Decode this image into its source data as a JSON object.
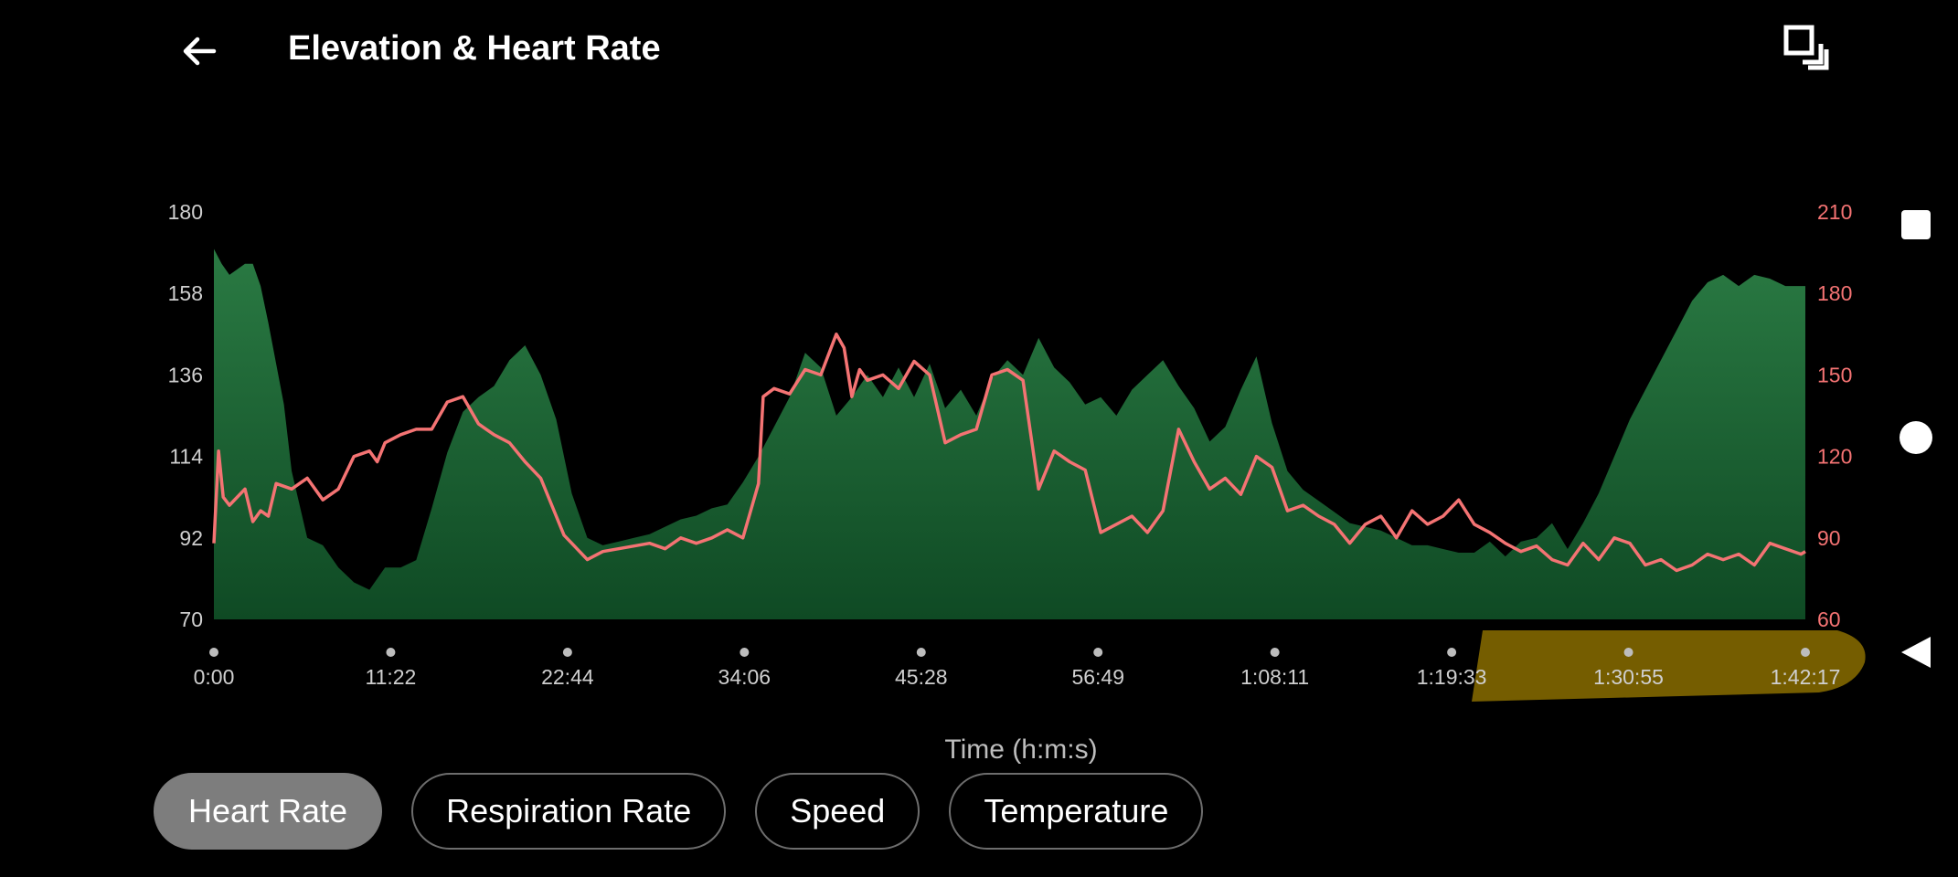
{
  "header": {
    "title": "Elevation & Heart Rate",
    "back_icon": "arrow-left-icon",
    "expand_icon": "fullscreen-icon"
  },
  "tabs": [
    {
      "label": "Heart Rate",
      "active": true
    },
    {
      "label": "Respiration Rate",
      "active": false
    },
    {
      "label": "Speed",
      "active": false
    },
    {
      "label": "Temperature",
      "active": false
    }
  ],
  "navbar": {
    "icons": [
      "recents-square-icon",
      "home-circle-icon",
      "back-triangle-icon"
    ]
  },
  "colors": {
    "background": "#000000",
    "elevation_fill_top": "#2a7a43",
    "elevation_fill_bottom": "#0f4a24",
    "heart_rate_line": "#f47373",
    "left_axis_text": "#cfcfcf",
    "right_axis_text": "#f47373",
    "highlight": "#8a6d00"
  },
  "chart_data": {
    "type": "area",
    "xlabel": "Time (h:m:s)",
    "x_ticks": [
      "0:00",
      "11:22",
      "22:44",
      "34:06",
      "45:28",
      "56:49",
      "1:08:11",
      "1:19:33",
      "1:30:55",
      "1:42:17"
    ],
    "x_range_minutes": [
      0,
      102.28
    ],
    "left_axis": {
      "ticks": [
        "180",
        "158",
        "136",
        "114",
        "92",
        "70"
      ],
      "ylim": [
        70,
        180
      ]
    },
    "right_axis": {
      "ticks": [
        "210",
        "180",
        "150",
        "120",
        "90",
        "60"
      ],
      "ylim": [
        60,
        210
      ]
    },
    "grid": false,
    "series": [
      {
        "type": "area",
        "axis": "left",
        "x_minutes": [
          0,
          0.5,
          1,
          2,
          2.5,
          3,
          3.5,
          4.5,
          5,
          6,
          7,
          8,
          9,
          10,
          11,
          12,
          13,
          14,
          15,
          16,
          17,
          18,
          19,
          20,
          21,
          22,
          23,
          24,
          25,
          26,
          27,
          28,
          29,
          30,
          31,
          32,
          33,
          34,
          35,
          36,
          37,
          38,
          39,
          40,
          41,
          42,
          43,
          44,
          45,
          46,
          47,
          48,
          49,
          50,
          51,
          52,
          53,
          54,
          55,
          56,
          57,
          58,
          59,
          60,
          61,
          62,
          63,
          64,
          65,
          66,
          67,
          68,
          69,
          70,
          71,
          72,
          73,
          74,
          75,
          76,
          77,
          78,
          79,
          80,
          81,
          82,
          83,
          84,
          85,
          86,
          87,
          88,
          89,
          90,
          91,
          92,
          93,
          94,
          95,
          96,
          97,
          98,
          99,
          100,
          101,
          102.28
        ],
        "values": [
          170,
          166,
          163,
          166,
          166,
          160,
          150,
          128,
          110,
          92,
          90,
          84,
          80,
          78,
          84,
          84,
          86,
          100,
          115,
          126,
          130,
          133,
          140,
          144,
          136,
          124,
          104,
          92,
          90,
          91,
          92,
          93,
          95,
          97,
          98,
          100,
          101,
          107,
          114,
          122,
          130,
          142,
          138,
          125,
          130,
          136,
          130,
          138,
          130,
          139,
          127,
          132,
          125,
          135,
          140,
          136,
          146,
          138,
          134,
          128,
          130,
          125,
          132,
          136,
          140,
          133,
          127,
          118,
          122,
          132,
          141,
          123,
          110,
          105,
          102,
          99,
          96,
          95,
          94,
          92,
          90,
          90,
          89,
          88,
          88,
          91,
          87,
          91,
          92,
          96,
          89,
          96,
          104,
          114,
          124,
          132,
          140,
          148,
          156,
          161,
          163,
          160,
          163,
          162,
          160,
          160
        ],
        "unit": "elevation"
      },
      {
        "type": "line",
        "axis": "right",
        "x_minutes": [
          0,
          0.3,
          0.6,
          1,
          2,
          2.5,
          3,
          3.5,
          4,
          5,
          5.5,
          6,
          7,
          8,
          9,
          10,
          10.5,
          11,
          12,
          13,
          14,
          15,
          16,
          17,
          17.5,
          18,
          19,
          20,
          21,
          22,
          22.5,
          23,
          24,
          25,
          26,
          27,
          28,
          29,
          30,
          31,
          32,
          33,
          34,
          35,
          35.3,
          36,
          37,
          38,
          39,
          40,
          40.5,
          41,
          41.5,
          42,
          43,
          44,
          45,
          46,
          47,
          48,
          49,
          50,
          51,
          52,
          53,
          54,
          54.5,
          55,
          56,
          57,
          58,
          59,
          60,
          61,
          62,
          63,
          64,
          65,
          66,
          67,
          68,
          69,
          70,
          71,
          72,
          73,
          74,
          75,
          76,
          77,
          78,
          79,
          80,
          81,
          82,
          83,
          84,
          85,
          86,
          87,
          88,
          89,
          90,
          91,
          92,
          93,
          94,
          95,
          96,
          97,
          98,
          99,
          100,
          101,
          102,
          102.28
        ],
        "values": [
          88,
          122,
          105,
          102,
          108,
          96,
          100,
          98,
          110,
          108,
          110,
          112,
          104,
          108,
          120,
          122,
          118,
          125,
          128,
          130,
          130,
          140,
          142,
          132,
          130,
          128,
          125,
          118,
          112,
          98,
          91,
          88,
          82,
          85,
          86,
          87,
          88,
          86,
          90,
          88,
          90,
          93,
          90,
          110,
          142,
          145,
          143,
          152,
          150,
          165,
          160,
          142,
          152,
          148,
          150,
          145,
          155,
          150,
          125,
          128,
          130,
          150,
          152,
          148,
          108,
          122,
          120,
          118,
          115,
          92,
          95,
          98,
          92,
          100,
          130,
          118,
          108,
          112,
          106,
          120,
          116,
          100,
          102,
          98,
          95,
          88,
          95,
          98,
          90,
          100,
          95,
          98,
          104,
          95,
          92,
          88,
          85,
          87,
          82,
          80,
          88,
          82,
          90,
          88,
          80,
          82,
          78,
          80,
          84,
          82,
          84,
          80,
          88,
          86,
          84,
          85
        ],
        "unit": "bpm"
      }
    ],
    "annotations": [
      {
        "type": "highlight",
        "near_x_ticks": [
          "1:30:55",
          "1:42:17"
        ]
      }
    ]
  }
}
